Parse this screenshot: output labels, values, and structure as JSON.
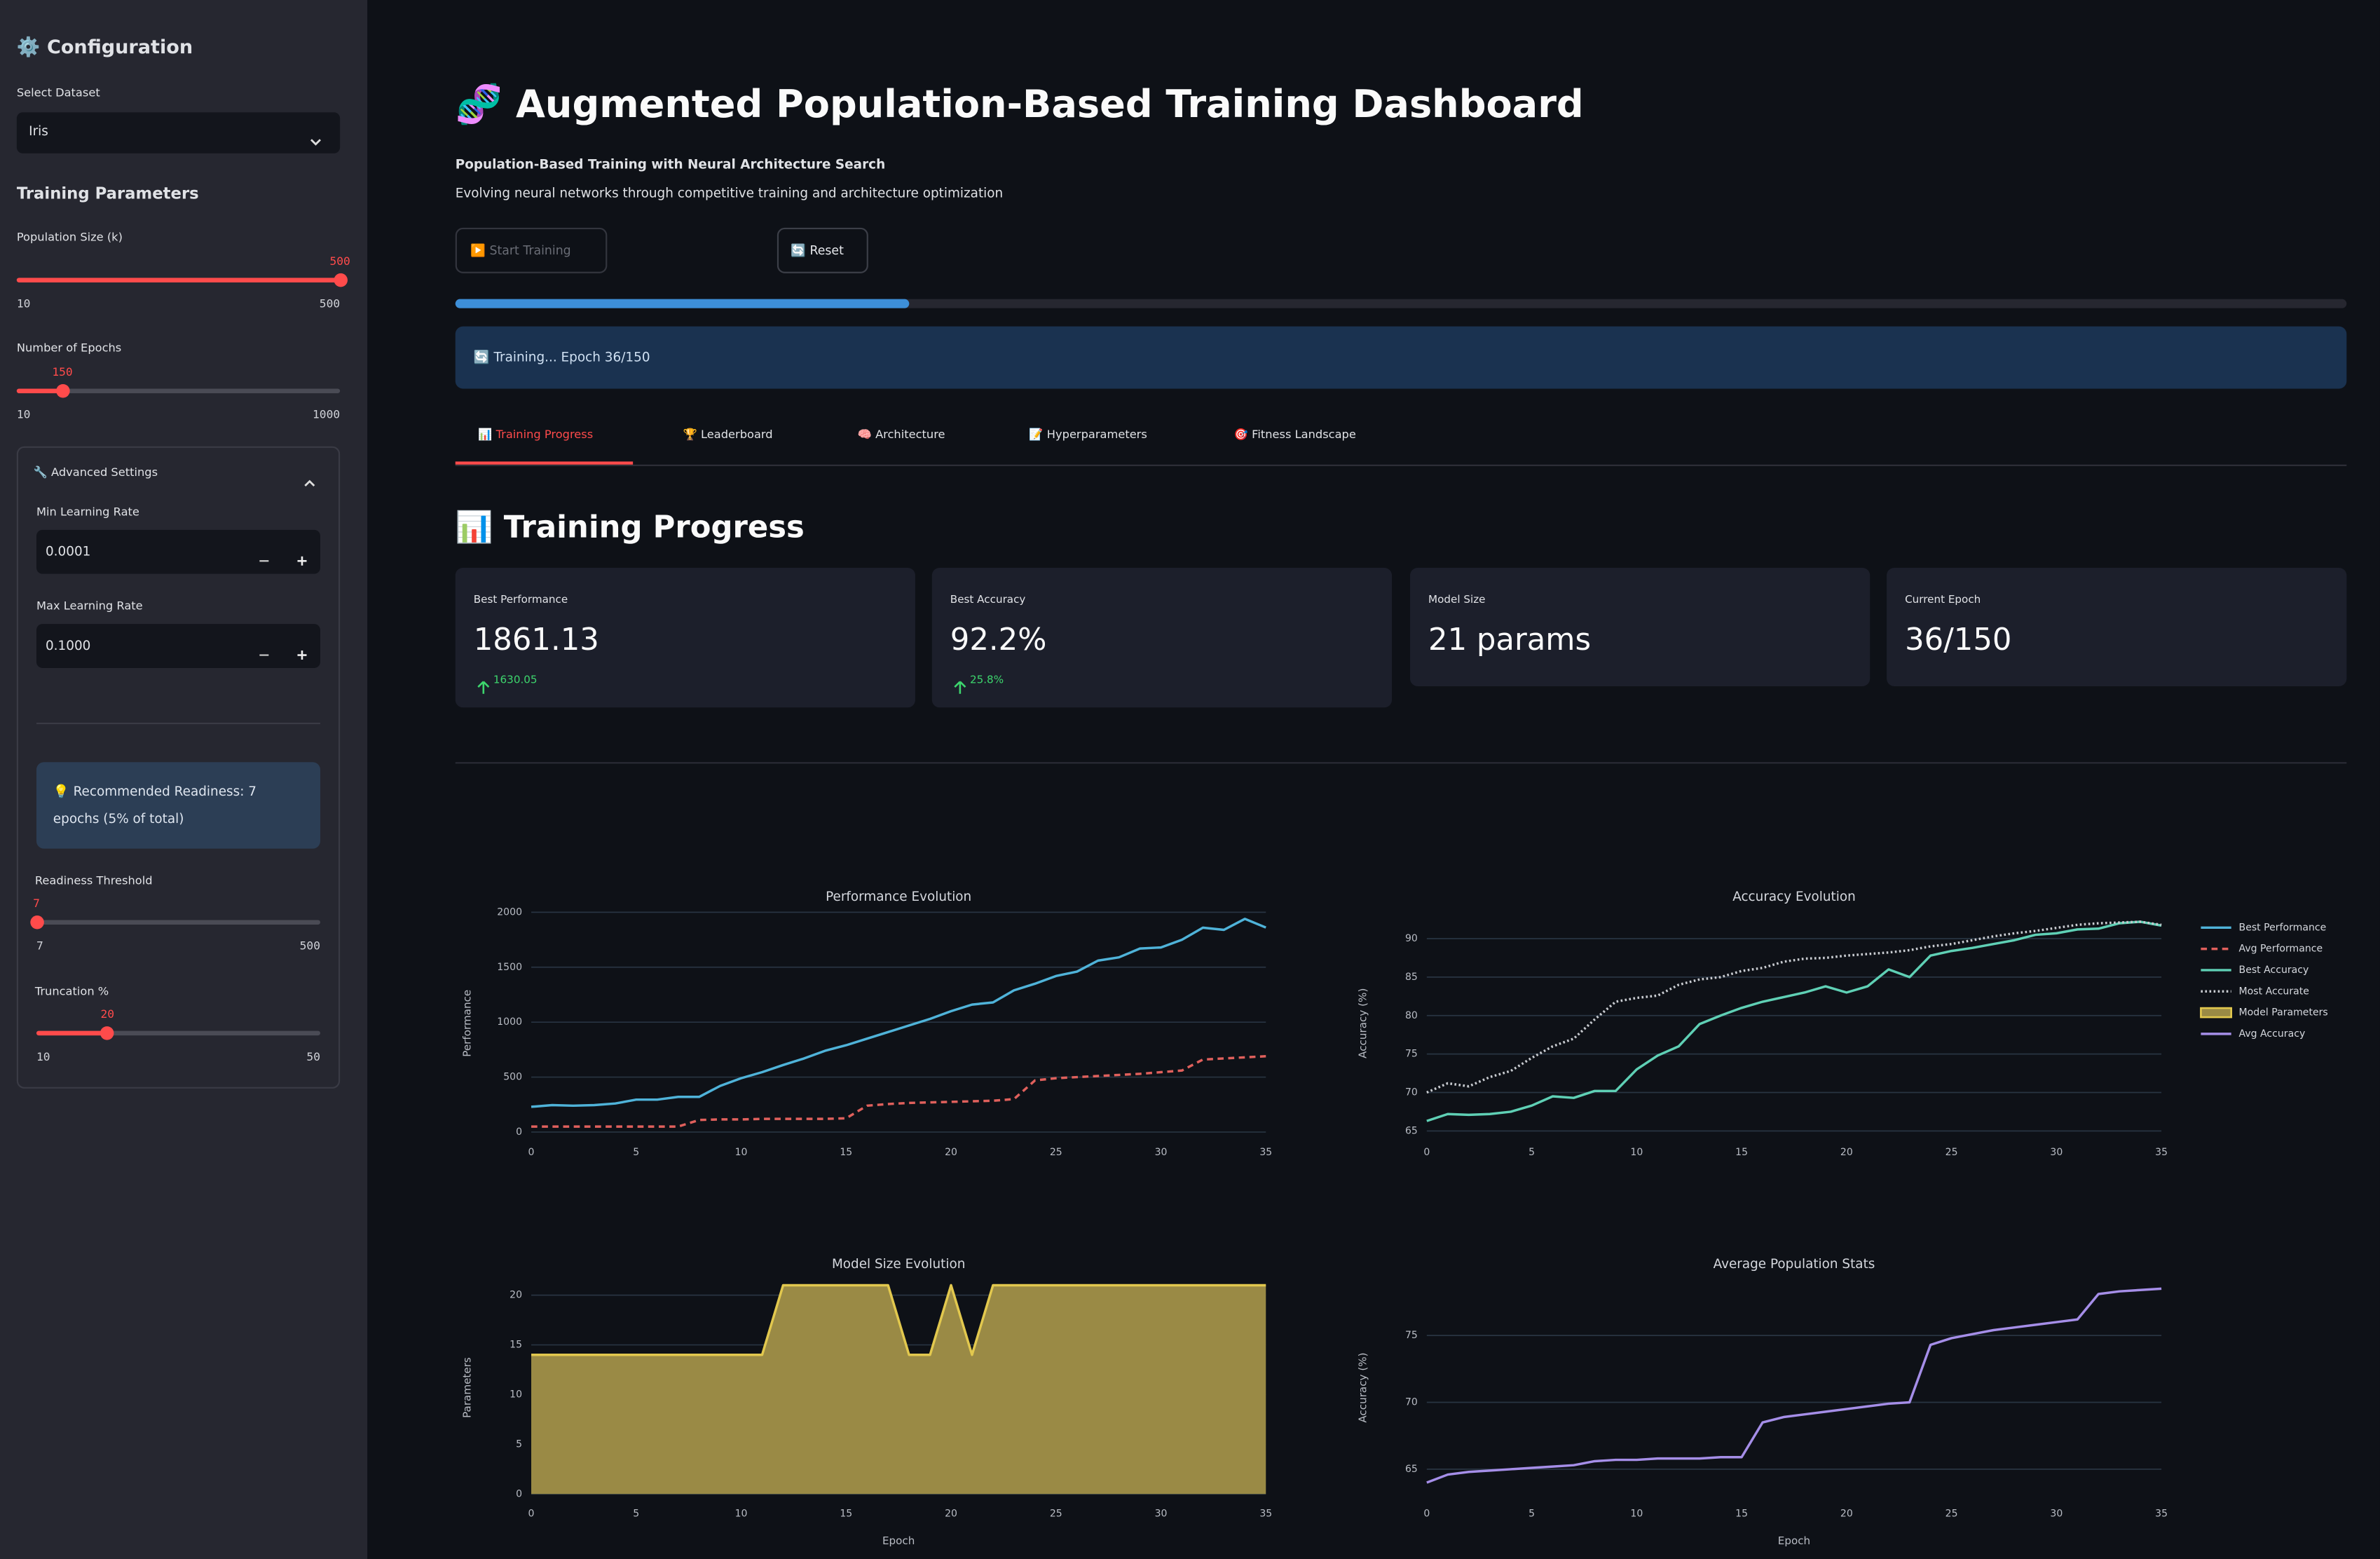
{
  "sidebar": {
    "title": "⚙️ Configuration",
    "dataset_label": "Select Dataset",
    "dataset": "Iris",
    "section": "Training Parameters",
    "population_label": "Population Size (k)",
    "population": {
      "value": 500,
      "min": 10,
      "max": 500
    },
    "epochs_label": "Number of Epochs",
    "epochs": {
      "value": 150,
      "min": 10,
      "max": 1000
    },
    "advanced": "🔧 Advanced Settings",
    "min_lr_label": "Min Learning Rate",
    "min_lr": "0.0001",
    "max_lr_label": "Max Learning Rate",
    "max_lr": "0.1000",
    "info": "💡 Recommended Readiness: 7 epochs (5% of total)",
    "readiness_label": "Readiness Threshold",
    "readiness": {
      "value": 7,
      "min": 7,
      "max": 500
    },
    "truncation_label": "Truncation %",
    "truncation": {
      "value": 20,
      "min": 10,
      "max": 50
    }
  },
  "header": {
    "title": "🧬 Augmented Population-Based Training Dashboard",
    "subtitle": "Population-Based Training with Neural Architecture Search",
    "description": "Evolving neural networks through competitive training and architecture optimization"
  },
  "controls": {
    "start": "▶️ Start Training",
    "reset": "🔄 Reset"
  },
  "progress": {
    "value": 36,
    "max": 150
  },
  "status": "🔄 Training... Epoch 36/150",
  "tabs": [
    "📊 Training Progress",
    "🏆 Leaderboard",
    "🧠 Architecture",
    "📝 Hyperparameters",
    "🎯 Fitness Landscape"
  ],
  "active_tab": 0,
  "section_title": "📊 Training Progress",
  "metrics": [
    {
      "label": "Best Performance",
      "value": 1861.13,
      "delta": 1630.05
    },
    {
      "label": "Best Accuracy",
      "value": "92.2%",
      "delta": "25.8%"
    },
    {
      "label": "Model Size",
      "value": "21 params"
    },
    {
      "label": "Current Epoch",
      "value": "36/150"
    }
  ],
  "chart_data": [
    {
      "type": "line",
      "title": "Performance Evolution",
      "y_label": "Performance",
      "x": [
        0,
        1,
        2,
        3,
        4,
        5,
        6,
        7,
        8,
        9,
        10,
        11,
        12,
        13,
        14,
        15,
        16,
        17,
        18,
        19,
        20,
        21,
        22,
        23,
        24,
        25,
        26,
        27,
        28,
        29,
        30,
        31,
        32,
        33,
        34,
        35
      ],
      "xlim": [
        0,
        35
      ],
      "xticks": [
        0,
        5,
        10,
        15,
        20,
        25,
        30,
        35
      ],
      "ylim": [
        -60,
        2040
      ],
      "yticks": [
        0,
        500,
        1000,
        1500,
        2000
      ],
      "grid": true,
      "series": [
        {
          "name": "Best Performance",
          "color": "#4fb3d9",
          "values": [
            230,
            245,
            240,
            245,
            260,
            295,
            295,
            320,
            320,
            420,
            490,
            545,
            610,
            670,
            740,
            790,
            850,
            910,
            970,
            1030,
            1100,
            1160,
            1180,
            1290,
            1350,
            1420,
            1460,
            1560,
            1590,
            1670,
            1680,
            1750,
            1860,
            1840,
            1940,
            1861
          ]
        },
        {
          "name": "Avg Performance",
          "color": "#e0605c",
          "dash": "dash",
          "values": [
            50,
            50,
            50,
            50,
            50,
            50,
            50,
            50,
            110,
            115,
            115,
            120,
            120,
            120,
            120,
            125,
            240,
            255,
            265,
            270,
            275,
            280,
            285,
            300,
            470,
            490,
            500,
            510,
            520,
            530,
            545,
            560,
            660,
            670,
            680,
            690
          ]
        }
      ]
    },
    {
      "type": "line",
      "title": "Accuracy Evolution",
      "y_label": "Accuracy (%)",
      "x": [
        0,
        1,
        2,
        3,
        4,
        5,
        6,
        7,
        8,
        9,
        10,
        11,
        12,
        13,
        14,
        15,
        16,
        17,
        18,
        19,
        20,
        21,
        22,
        23,
        24,
        25,
        26,
        27,
        28,
        29,
        30,
        31,
        32,
        33,
        34,
        35
      ],
      "xlim": [
        0,
        35
      ],
      "xticks": [
        0,
        5,
        10,
        15,
        20,
        25,
        30,
        35
      ],
      "ylim": [
        64,
        94
      ],
      "yticks": [
        65,
        70,
        75,
        80,
        85,
        90
      ],
      "grid": true,
      "series": [
        {
          "name": "Best Accuracy",
          "color": "#5fd0b5",
          "values": [
            66.3,
            67.2,
            67.1,
            67.2,
            67.5,
            68.3,
            69.5,
            69.3,
            70.2,
            70.2,
            73.0,
            74.8,
            76.0,
            78.9,
            80.0,
            81.0,
            81.8,
            82.4,
            83.0,
            83.8,
            83.0,
            83.8,
            86.0,
            85.0,
            87.8,
            88.4,
            88.8,
            89.3,
            89.8,
            90.5,
            90.7,
            91.2,
            91.3,
            92.0,
            92.2,
            91.7
          ]
        },
        {
          "name": "Most Accurate",
          "color": "#c8cbd0",
          "dash": "dot",
          "values": [
            70.0,
            71.2,
            70.8,
            72.0,
            72.8,
            74.5,
            76.0,
            77.0,
            79.5,
            81.8,
            82.3,
            82.6,
            84.0,
            84.7,
            85.0,
            85.8,
            86.2,
            87.0,
            87.4,
            87.5,
            87.8,
            88.0,
            88.2,
            88.5,
            89.0,
            89.3,
            89.8,
            90.3,
            90.7,
            91.0,
            91.4,
            91.8,
            92.0,
            92.1,
            92.2,
            91.8
          ]
        }
      ]
    },
    {
      "type": "area",
      "title": "Model Size Evolution",
      "y_label": "Parameters",
      "x_label": "Epoch",
      "x": [
        0,
        1,
        2,
        3,
        4,
        5,
        6,
        7,
        8,
        9,
        10,
        11,
        12,
        13,
        14,
        15,
        16,
        17,
        18,
        19,
        20,
        21,
        22,
        23,
        24,
        25,
        26,
        27,
        28,
        29,
        30,
        31,
        32,
        33,
        34,
        35
      ],
      "xlim": [
        0,
        35
      ],
      "xticks": [
        0,
        5,
        10,
        15,
        20,
        25,
        30,
        35
      ],
      "ylim": [
        -0.6,
        22
      ],
      "yticks": [
        0,
        5,
        10,
        15,
        20
      ],
      "grid": true,
      "series": [
        {
          "name": "Model Parameters",
          "color": "#e2c84e",
          "fill": "#9a8a45",
          "values": [
            14,
            14,
            14,
            14,
            14,
            14,
            14,
            14,
            14,
            14,
            14,
            14,
            21,
            21,
            21,
            21,
            21,
            21,
            14,
            14,
            21,
            14,
            21,
            21,
            21,
            21,
            21,
            21,
            21,
            21,
            21,
            21,
            21,
            21,
            21,
            21
          ]
        }
      ]
    },
    {
      "type": "line",
      "title": "Average Population Stats",
      "y_label": "Accuracy (%)",
      "x_label": "Epoch",
      "x": [
        0,
        1,
        2,
        3,
        4,
        5,
        6,
        7,
        8,
        9,
        10,
        11,
        12,
        13,
        14,
        15,
        16,
        17,
        18,
        19,
        20,
        21,
        22,
        23,
        24,
        25,
        26,
        27,
        28,
        29,
        30,
        31,
        32,
        33,
        34,
        35
      ],
      "xlim": [
        0,
        35
      ],
      "xticks": [
        0,
        5,
        10,
        15,
        20,
        25,
        30,
        35
      ],
      "ylim": [
        62.7,
        79.5
      ],
      "yticks": [
        65,
        70,
        75
      ],
      "grid": true,
      "series": [
        {
          "name": "Avg Accuracy",
          "color": "#a58ee8",
          "values": [
            64.0,
            64.6,
            64.8,
            64.9,
            65.0,
            65.1,
            65.2,
            65.3,
            65.6,
            65.7,
            65.7,
            65.8,
            65.8,
            65.8,
            65.9,
            65.9,
            68.5,
            68.9,
            69.1,
            69.3,
            69.5,
            69.7,
            69.9,
            70.0,
            74.3,
            74.8,
            75.1,
            75.4,
            75.6,
            75.8,
            76.0,
            76.2,
            78.1,
            78.3,
            78.4,
            78.5
          ]
        }
      ]
    }
  ]
}
